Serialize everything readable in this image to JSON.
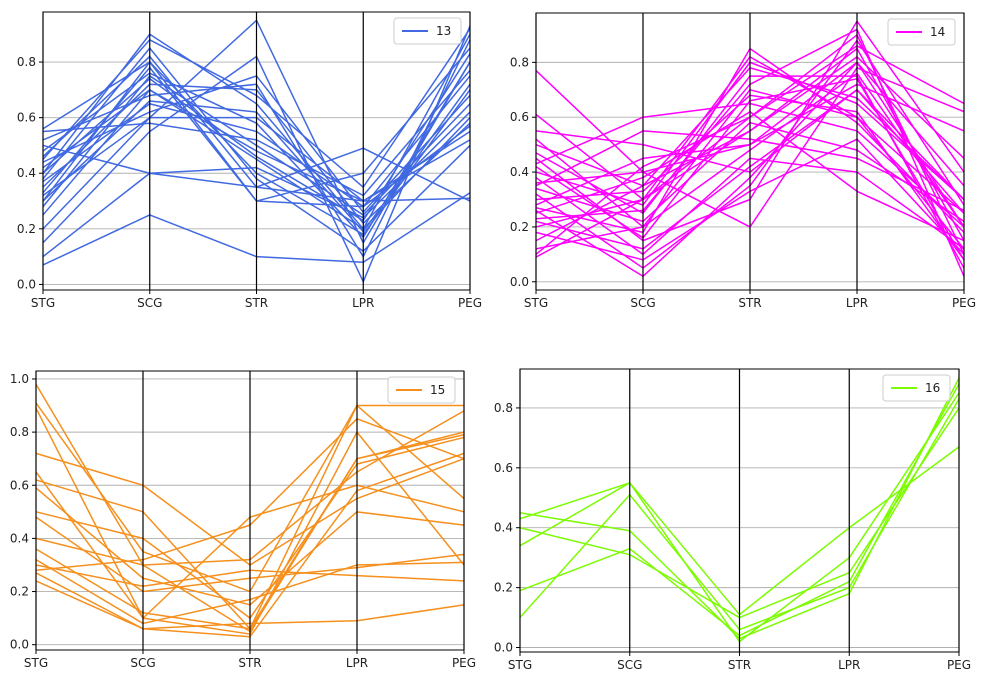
{
  "chart_data": [
    {
      "type": "line",
      "subtype": "parallel-coordinates",
      "categories": [
        "STG",
        "SCG",
        "STR",
        "LPR",
        "PEG"
      ],
      "legend": "13",
      "color": "#4169e1",
      "ylim": [
        -0.02,
        0.98
      ],
      "yticks": [
        "0.0",
        "0.2",
        "0.4",
        "0.6",
        "0.8"
      ],
      "grid": true,
      "legend_position": "top-right",
      "series": [
        [
          0.07,
          0.25,
          0.1,
          0.08,
          0.33
        ],
        [
          0.1,
          0.4,
          0.35,
          0.3,
          0.31
        ],
        [
          0.15,
          0.55,
          0.82,
          0.01,
          0.93
        ],
        [
          0.2,
          0.6,
          0.95,
          0.15,
          0.8
        ],
        [
          0.25,
          0.7,
          0.45,
          0.2,
          0.6
        ],
        [
          0.28,
          0.75,
          0.5,
          0.25,
          0.65
        ],
        [
          0.3,
          0.8,
          0.4,
          0.18,
          0.7
        ],
        [
          0.32,
          0.6,
          0.6,
          0.3,
          0.55
        ],
        [
          0.33,
          0.78,
          0.3,
          0.4,
          0.85
        ],
        [
          0.35,
          0.72,
          0.7,
          0.22,
          0.58
        ],
        [
          0.37,
          0.65,
          0.55,
          0.28,
          0.75
        ],
        [
          0.38,
          0.85,
          0.38,
          0.12,
          0.5
        ],
        [
          0.4,
          0.9,
          0.65,
          0.2,
          0.9
        ],
        [
          0.42,
          0.7,
          0.48,
          0.3,
          0.52
        ],
        [
          0.44,
          0.62,
          0.75,
          0.26,
          0.68
        ],
        [
          0.46,
          0.82,
          0.35,
          0.49,
          0.3
        ],
        [
          0.48,
          0.76,
          0.58,
          0.17,
          0.8
        ],
        [
          0.5,
          0.4,
          0.42,
          0.24,
          0.62
        ],
        [
          0.52,
          0.68,
          0.72,
          0.1,
          0.88
        ],
        [
          0.55,
          0.58,
          0.52,
          0.32,
          0.77
        ],
        [
          0.56,
          0.8,
          0.3,
          0.28,
          0.57
        ],
        [
          0.45,
          0.88,
          0.68,
          0.35,
          0.92
        ],
        [
          0.3,
          0.66,
          0.62,
          0.19,
          0.72
        ],
        [
          0.4,
          0.74,
          0.46,
          0.23,
          0.83
        ]
      ]
    },
    {
      "type": "line",
      "subtype": "parallel-coordinates",
      "categories": [
        "STG",
        "SCG",
        "STR",
        "LPR",
        "PEG"
      ],
      "legend": "14",
      "color": "#ff00ff",
      "ylim": [
        -0.03,
        0.98
      ],
      "yticks": [
        "0.0",
        "0.2",
        "0.4",
        "0.6",
        "0.8"
      ],
      "grid": true,
      "legend_position": "top-right",
      "series": [
        [
          0.77,
          0.4,
          0.5,
          0.8,
          0.2
        ],
        [
          0.61,
          0.3,
          0.6,
          0.9,
          0.1
        ],
        [
          0.55,
          0.5,
          0.4,
          0.7,
          0.3
        ],
        [
          0.52,
          0.2,
          0.7,
          0.6,
          0.25
        ],
        [
          0.5,
          0.35,
          0.55,
          0.85,
          0.15
        ],
        [
          0.47,
          0.25,
          0.75,
          0.75,
          0.05
        ],
        [
          0.45,
          0.15,
          0.3,
          0.95,
          0.4
        ],
        [
          0.43,
          0.6,
          0.65,
          0.55,
          0.2
        ],
        [
          0.4,
          0.28,
          0.8,
          0.65,
          0.3
        ],
        [
          0.38,
          0.1,
          0.45,
          0.4,
          0.12
        ],
        [
          0.36,
          0.4,
          0.2,
          0.78,
          0.62
        ],
        [
          0.34,
          0.22,
          0.58,
          0.48,
          0.22
        ],
        [
          0.32,
          0.05,
          0.35,
          0.88,
          0.28
        ],
        [
          0.3,
          0.33,
          0.68,
          0.62,
          0.08
        ],
        [
          0.28,
          0.45,
          0.5,
          0.72,
          0.55
        ],
        [
          0.27,
          0.18,
          0.85,
          0.58,
          0.18
        ],
        [
          0.26,
          0.02,
          0.38,
          0.8,
          0.35
        ],
        [
          0.25,
          0.38,
          0.62,
          0.33,
          0.15
        ],
        [
          0.23,
          0.26,
          0.72,
          0.92,
          0.02
        ],
        [
          0.22,
          0.12,
          0.42,
          0.7,
          0.25
        ],
        [
          0.2,
          0.3,
          0.55,
          0.82,
          0.45
        ],
        [
          0.18,
          0.08,
          0.33,
          0.52,
          0.1
        ],
        [
          0.15,
          0.35,
          0.78,
          0.67,
          0.3
        ],
        [
          0.12,
          0.2,
          0.48,
          0.76,
          0.2
        ],
        [
          0.1,
          0.42,
          0.6,
          0.86,
          0.65
        ],
        [
          0.09,
          0.3,
          0.82,
          0.6,
          0.12
        ],
        [
          0.35,
          0.55,
          0.52,
          0.45,
          0.26
        ],
        [
          0.42,
          0.16,
          0.66,
          0.74,
          0.08
        ]
      ]
    },
    {
      "type": "line",
      "subtype": "parallel-coordinates",
      "categories": [
        "STG",
        "SCG",
        "STR",
        "LPR",
        "PEG"
      ],
      "legend": "15",
      "color": "#f5901e",
      "ylim": [
        -0.02,
        1.03
      ],
      "yticks": [
        "0.0",
        "0.2",
        "0.4",
        "0.6",
        "0.8",
        "1.0"
      ],
      "grid": true,
      "legend_position": "top-right",
      "series": [
        [
          0.98,
          0.3,
          0.05,
          0.7,
          0.8
        ],
        [
          0.91,
          0.35,
          0.2,
          0.9,
          0.9
        ],
        [
          0.89,
          0.1,
          0.48,
          0.6,
          0.5
        ],
        [
          0.72,
          0.6,
          0.3,
          0.55,
          0.7
        ],
        [
          0.65,
          0.1,
          0.04,
          0.8,
          0.3
        ],
        [
          0.59,
          0.25,
          0.15,
          0.5,
          0.45
        ],
        [
          0.5,
          0.4,
          0.1,
          0.68,
          0.78
        ],
        [
          0.48,
          0.2,
          0.25,
          0.29,
          0.34
        ],
        [
          0.4,
          0.3,
          0.32,
          0.65,
          0.88
        ],
        [
          0.36,
          0.12,
          0.06,
          0.9,
          0.55
        ],
        [
          0.32,
          0.08,
          0.17,
          0.3,
          0.31
        ],
        [
          0.28,
          0.32,
          0.45,
          0.85,
          0.7
        ],
        [
          0.27,
          0.06,
          0.08,
          0.09,
          0.15
        ],
        [
          0.24,
          0.06,
          0.03,
          0.58,
          0.72
        ],
        [
          0.3,
          0.22,
          0.28,
          0.26,
          0.24
        ],
        [
          0.62,
          0.5,
          0.06,
          0.7,
          0.79
        ]
      ]
    },
    {
      "type": "line",
      "subtype": "parallel-coordinates",
      "categories": [
        "STG",
        "SCG",
        "STR",
        "LPR",
        "PEG"
      ],
      "legend": "16",
      "color": "#7cfc00",
      "ylim": [
        -0.015,
        0.93
      ],
      "yticks": [
        "0.0",
        "0.2",
        "0.4",
        "0.6",
        "0.8"
      ],
      "grid": true,
      "legend_position": "top-right",
      "series": [
        [
          0.45,
          0.39,
          0.03,
          0.18,
          0.9
        ],
        [
          0.43,
          0.55,
          0.02,
          0.3,
          0.85
        ],
        [
          0.4,
          0.31,
          0.1,
          0.25,
          0.8
        ],
        [
          0.34,
          0.55,
          0.11,
          0.4,
          0.67
        ],
        [
          0.19,
          0.33,
          0.04,
          0.22,
          0.88
        ],
        [
          0.1,
          0.51,
          0.06,
          0.2,
          0.83
        ]
      ]
    }
  ]
}
